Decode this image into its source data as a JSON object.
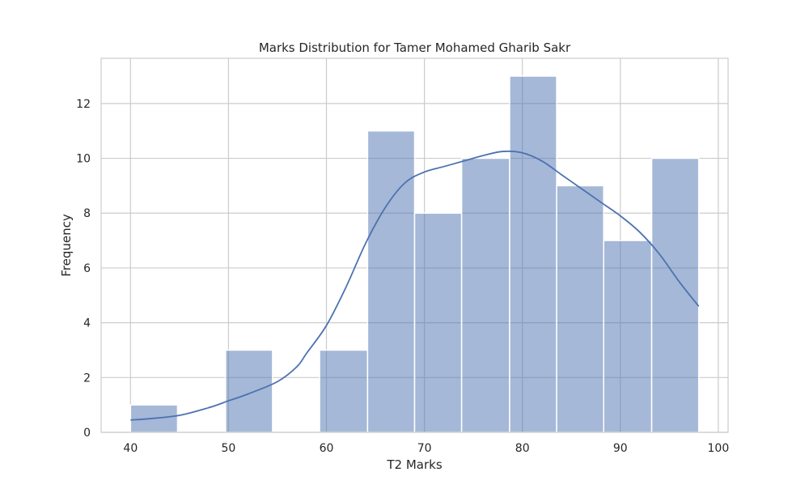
{
  "chart_data": {
    "type": "bar",
    "title": "Marks Distribution for Tamer Mohamed Gharib Sakr",
    "xlabel": "T2 Marks",
    "ylabel": "Frequency",
    "xlim": [
      37,
      101
    ],
    "ylim": [
      0,
      13.65
    ],
    "x_ticks": [
      40,
      50,
      60,
      70,
      80,
      90,
      100
    ],
    "y_ticks": [
      0,
      2,
      4,
      6,
      8,
      10,
      12
    ],
    "grid": true,
    "bins": [
      {
        "start": 40.0,
        "end": 44.8,
        "count": 1
      },
      {
        "start": 44.8,
        "end": 49.7,
        "count": 0
      },
      {
        "start": 49.7,
        "end": 54.5,
        "count": 3
      },
      {
        "start": 54.5,
        "end": 59.3,
        "count": 0
      },
      {
        "start": 59.3,
        "end": 64.2,
        "count": 3
      },
      {
        "start": 64.2,
        "end": 69.0,
        "count": 11
      },
      {
        "start": 69.0,
        "end": 73.8,
        "count": 8
      },
      {
        "start": 73.8,
        "end": 78.7,
        "count": 10
      },
      {
        "start": 78.7,
        "end": 83.5,
        "count": 13
      },
      {
        "start": 83.5,
        "end": 88.3,
        "count": 9
      },
      {
        "start": 88.3,
        "end": 93.2,
        "count": 7
      },
      {
        "start": 93.2,
        "end": 98.0,
        "count": 10
      }
    ],
    "kde": {
      "x": [
        40,
        42,
        45,
        48,
        50,
        52,
        55,
        57,
        58,
        60,
        62,
        64,
        66,
        68,
        70,
        72,
        74,
        76,
        78,
        80,
        82,
        84,
        86,
        88,
        90,
        92,
        94,
        96,
        98
      ],
      "y": [
        0.45,
        0.5,
        0.62,
        0.9,
        1.15,
        1.4,
        1.85,
        2.4,
        2.9,
        3.9,
        5.3,
        6.9,
        8.2,
        9.1,
        9.5,
        9.7,
        9.9,
        10.1,
        10.25,
        10.2,
        9.9,
        9.4,
        8.9,
        8.4,
        7.9,
        7.3,
        6.5,
        5.5,
        4.6
      ]
    },
    "colors": {
      "bar_fill": "#4c72b0",
      "bar_opacity": 0.5,
      "bar_edge": "#ffffff",
      "kde_line": "#4c72b0",
      "grid": "#cccccc",
      "frame": "#cccccc"
    }
  }
}
